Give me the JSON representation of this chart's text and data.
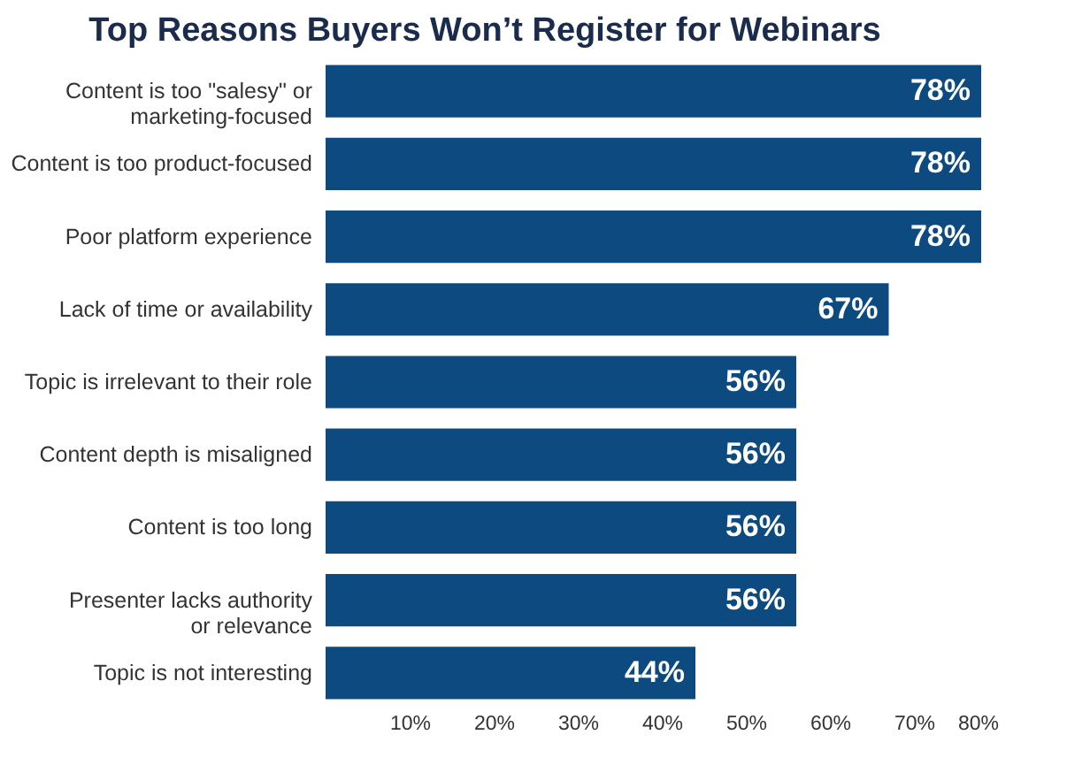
{
  "chart_data": {
    "type": "bar",
    "orientation": "horizontal",
    "title": "Top Reasons Buyers Won’t Register for Webinars",
    "categories": [
      "Content is too \"salesy\" or\nmarketing-focused",
      "Content is too product-focused",
      "Poor platform experience",
      "Lack of time or availability",
      "Topic is irrelevant to their role",
      "Content depth is misaligned",
      "Content is too long",
      "Presenter lacks authority\nor relevance",
      "Topic is not interesting"
    ],
    "values": [
      78,
      78,
      78,
      67,
      56,
      56,
      56,
      56,
      44
    ],
    "color": "#0d4a7f",
    "value_labels": [
      "78%",
      "78%",
      "78%",
      "67%",
      "56%",
      "56%",
      "56%",
      "56%",
      "44%"
    ],
    "xlim": [
      0,
      80
    ],
    "xticks": [
      {
        "value": 10,
        "label": "10%"
      },
      {
        "value": 20,
        "label": "20%"
      },
      {
        "value": 30,
        "label": "30%"
      },
      {
        "value": 40,
        "label": "40%"
      },
      {
        "value": 50,
        "label": "50%"
      },
      {
        "value": 60,
        "label": "60%"
      },
      {
        "value": 70,
        "label": "70%"
      },
      {
        "value": 80,
        "label": "80%"
      }
    ],
    "grid": false
  }
}
